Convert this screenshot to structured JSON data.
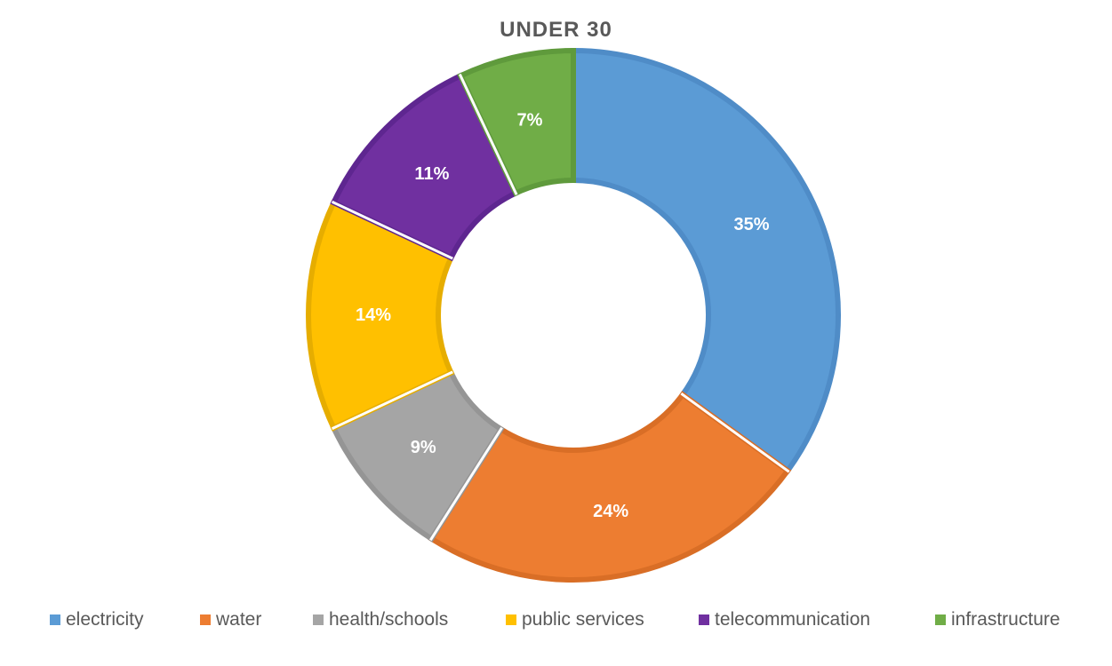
{
  "chart_data": {
    "type": "pie",
    "variant": "donut",
    "title": "UNDER 30",
    "categories": [
      "electricity",
      "water",
      "health/schools",
      "public services",
      "telecommunication",
      "infrastructure"
    ],
    "values": [
      35,
      24,
      9,
      14,
      11,
      7
    ],
    "value_labels": [
      "35%",
      "24%",
      "9%",
      "14%",
      "11%",
      "7%"
    ],
    "unit": "%",
    "colors": [
      "#5B9BD5",
      "#ED7D31",
      "#A5A5A5",
      "#FFC000",
      "#7030A0",
      "#70AD47"
    ],
    "border_colors": [
      "#4F8CC7",
      "#D96E26",
      "#959595",
      "#E6AD00",
      "#5E2690",
      "#5F9A3C"
    ],
    "legend_position": "bottom",
    "start_angle_degrees": 0,
    "direction": "clockwise"
  }
}
